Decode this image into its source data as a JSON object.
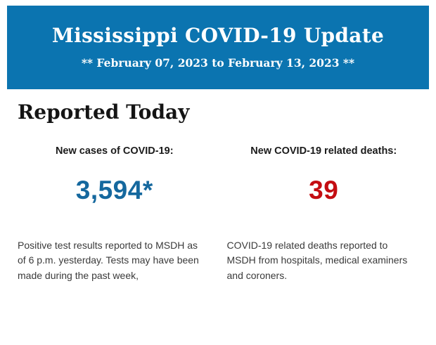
{
  "header": {
    "title": "Mississippi COVID-19 Update",
    "date_range": "** February 07, 2023 to February 13, 2023 **",
    "background_color": "#0b74b0",
    "text_color": "#ffffff"
  },
  "section": {
    "heading": "Reported Today"
  },
  "stats": [
    {
      "label": "New cases of COVID-19:",
      "value": "3,594*",
      "value_color": "#15689e",
      "description": "Positive test results reported to MSDH as\nof 6 p.m. yesterday. Tests may have been\nmade during the past week,"
    },
    {
      "label": "New COVID-19 related deaths:",
      "value": "39",
      "value_color": "#c40d12",
      "description": "COVID-19 related deaths reported to\nMSDH from hospitals, medical examiners\nand coroners."
    }
  ]
}
